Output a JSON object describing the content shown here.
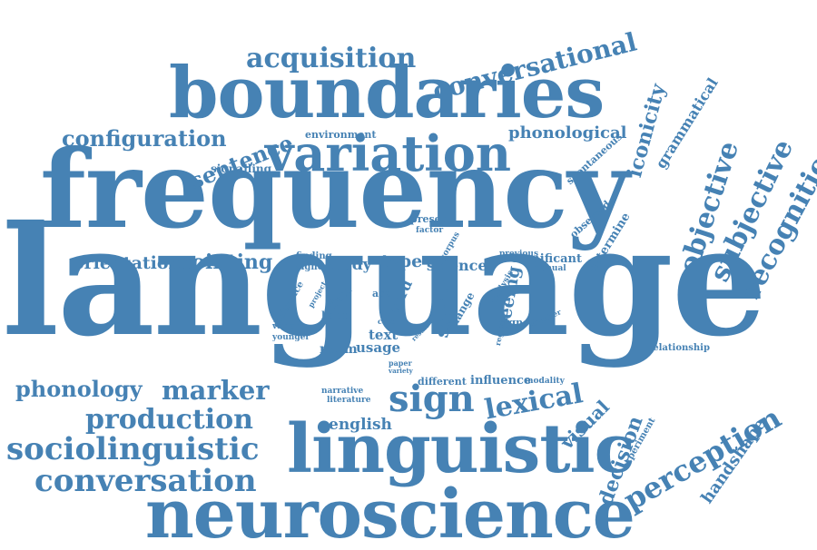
{
  "colors": {
    "word": "#4682b4",
    "background": "#ffffff"
  },
  "words": {
    "language": "language",
    "frequency": "frequency",
    "boundaries": "boundaries",
    "neuroscience": "neuroscience",
    "linguistic": "linguistic",
    "variation": "variation",
    "acquisition": "acquisition",
    "conversational": "conversational",
    "configuration": "configuration",
    "sentence": "sentence",
    "environment": "environment",
    "phonological": "phonological",
    "signalling": "signalling",
    "iconicity": "iconicity",
    "grammatical": "grammatical",
    "spontaneous": "spontaneous",
    "objective": "objective",
    "subjective": "subjective",
    "recognition": "recognition",
    "observed": "observed",
    "determine": "determine",
    "present": "present",
    "factor": "factor",
    "corpus": "corpus",
    "orientation": "orientation",
    "pointing": "pointing",
    "finding": "finding",
    "signer": "signer",
    "study": "study",
    "type": "type",
    "science": "science",
    "previous": "previous",
    "significant": "significant",
    "manual": "manual",
    "analysis": "analysis",
    "difference": "difference",
    "project": "project",
    "data": "data",
    "hand": "hand",
    "acc": "acc",
    "word": "word",
    "case": "case",
    "social": "social",
    "change": "change",
    "seeing": "seeing",
    "region": "region",
    "signed": "signed",
    "number": "number",
    "variant": "variant",
    "younger": "younger",
    "text": "text",
    "result": "result",
    "norm": "norm",
    "usage": "usage",
    "paper": "paper",
    "variety": "variety",
    "relationship": "relationship",
    "phonology": "phonology",
    "marker": "marker",
    "different": "different",
    "influence": "influence",
    "modality": "modality",
    "narrative": "narrative",
    "literature": "literature",
    "sign": "sign",
    "lexical": "lexical",
    "visual": "visual",
    "production": "production",
    "english": "english",
    "sociolinguistic": "sociolinguistic",
    "conversation": "conversation",
    "decision": "decision",
    "experiment": "experiment",
    "perception": "perception",
    "handshape": "handshape"
  }
}
